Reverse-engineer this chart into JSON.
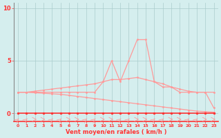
{
  "x": [
    0,
    1,
    2,
    3,
    4,
    5,
    6,
    7,
    8,
    9,
    10,
    11,
    12,
    13,
    14,
    15,
    16,
    17,
    18,
    19,
    20,
    21,
    22,
    23
  ],
  "y_rafales": [
    2,
    2,
    2,
    2,
    2,
    2,
    2,
    2,
    2,
    2,
    3,
    5,
    3,
    5,
    7,
    7,
    3,
    2.5,
    2.5,
    2,
    2,
    2,
    2,
    0.5
  ],
  "y_moyen_up": [
    2,
    2,
    2.1,
    2.2,
    2.3,
    2.4,
    2.5,
    2.6,
    2.7,
    2.8,
    3.0,
    3.2,
    3.2,
    3.3,
    3.4,
    3.2,
    3.0,
    2.8,
    2.5,
    2.3,
    2.1,
    2.0,
    2.0,
    2.0
  ],
  "y_moyen_dn": [
    2,
    2,
    1.95,
    1.9,
    1.85,
    1.8,
    1.7,
    1.6,
    1.5,
    1.4,
    1.3,
    1.2,
    1.1,
    1.0,
    0.9,
    0.8,
    0.7,
    0.6,
    0.5,
    0.4,
    0.3,
    0.2,
    0.15,
    0.1
  ],
  "y_zero": [
    0,
    0,
    0,
    0,
    0,
    0,
    0,
    0,
    0,
    0,
    0,
    0,
    0,
    0,
    0,
    0,
    0,
    0,
    0,
    0,
    0,
    0,
    0,
    0
  ],
  "xlabel": "Vent moyen/en rafales ( km/h )",
  "yticks": [
    0,
    5,
    10
  ],
  "ylim": [
    -0.8,
    10.5
  ],
  "xlim": [
    -0.5,
    23.5
  ],
  "line_color_red": "#ff3333",
  "line_color_pink": "#ff9999",
  "bg_color": "#d5eeee",
  "grid_color": "#aacccc",
  "axis_line_color": "#cc3333"
}
